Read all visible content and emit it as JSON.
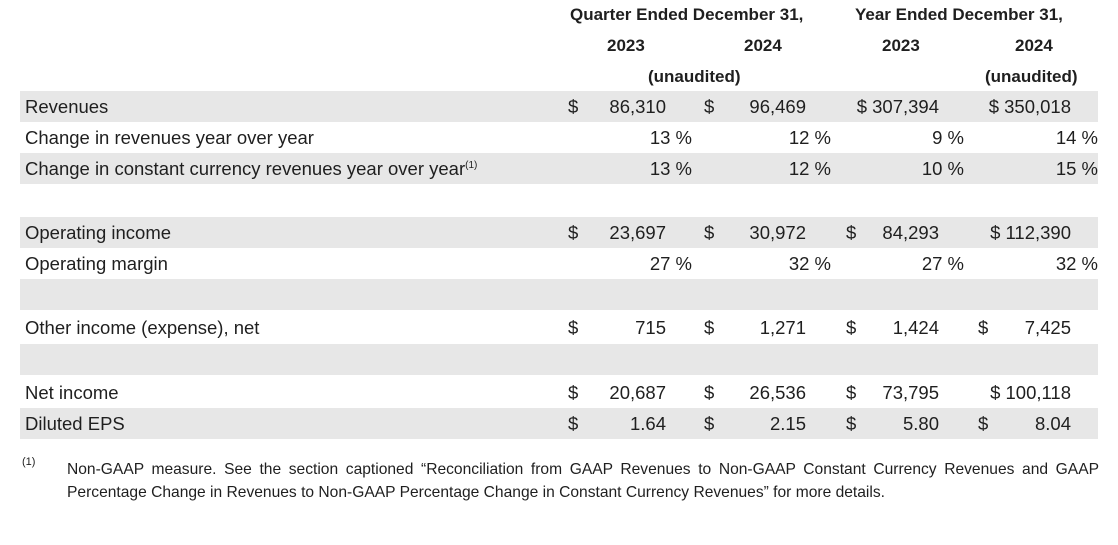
{
  "header": {
    "quarter_group": "Quarter Ended December 31,",
    "year_group": "Year Ended December 31,",
    "q_2023": "2023",
    "q_2024": "2024",
    "y_2023": "2023",
    "y_2024": "2024",
    "q_unaudited": "(unaudited)",
    "y_unaudited": "(unaudited)"
  },
  "rows": {
    "revenues": {
      "label": "Revenues",
      "q23_sym": "$",
      "q23": "86,310",
      "q24_sym": "$",
      "q24": "96,469",
      "y23": "$ 307,394",
      "y24": "$ 350,018"
    },
    "rev_change": {
      "label": "Change in revenues year over year",
      "q23": "13 %",
      "q24": "12 %",
      "y23": "9 %",
      "y24": "14 %"
    },
    "cc_change": {
      "label": "Change in constant currency revenues year over year",
      "label_sup": "(1)",
      "q23": "13 %",
      "q24": "12 %",
      "y23": "10 %",
      "y24": "15 %"
    },
    "op_income": {
      "label": "Operating income",
      "q23_sym": "$",
      "q23": "23,697",
      "q24_sym": "$",
      "q24": "30,972",
      "y23_sym": "$",
      "y23": "84,293",
      "y24": "$ 112,390"
    },
    "op_margin": {
      "label": "Operating margin",
      "q23": "27 %",
      "q24": "32 %",
      "y23": "27 %",
      "y24": "32 %"
    },
    "other_income": {
      "label": "Other income (expense), net",
      "q23_sym": "$",
      "q23": "715",
      "q24_sym": "$",
      "q24": "1,271",
      "y23_sym": "$",
      "y23": "1,424",
      "y24_sym": "$",
      "y24": "7,425"
    },
    "net_income": {
      "label": "Net income",
      "q23_sym": "$",
      "q23": "20,687",
      "q24_sym": "$",
      "q24": "26,536",
      "y23_sym": "$",
      "y23": "73,795",
      "y24": "$ 100,118"
    },
    "eps": {
      "label": "Diluted EPS",
      "q23_sym": "$",
      "q23": "1.64",
      "q24_sym": "$",
      "q24": "2.15",
      "y23_sym": "$",
      "y23": "5.80",
      "y24_sym": "$",
      "y24": "8.04"
    }
  },
  "footnote": {
    "mark": "(1)",
    "text": "Non-GAAP measure. See the section captioned “Reconciliation from GAAP Revenues to Non-GAAP Constant Currency Revenues and GAAP Percentage Change in Revenues to Non-GAAP Percentage Change in Constant Currency Revenues” for more details."
  }
}
